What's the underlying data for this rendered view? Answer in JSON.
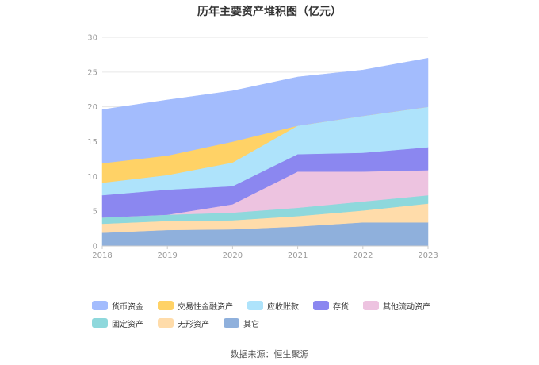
{
  "chart_data": {
    "type": "area",
    "stacked": true,
    "title": "历年主要资产堆积图（亿元）",
    "categories": [
      "2018",
      "2019",
      "2020",
      "2021",
      "2022",
      "2023"
    ],
    "yticks": [
      "0",
      "5",
      "10",
      "15",
      "20",
      "25",
      "30"
    ],
    "ylim": [
      0,
      30
    ],
    "legend_position": "bottom",
    "series": [
      {
        "name": "其它",
        "color": "#8fb0dc",
        "values": [
          1.9,
          2.3,
          2.4,
          2.8,
          3.4,
          3.4
        ]
      },
      {
        "name": "无形资产",
        "color": "#ffdcaa",
        "values": [
          1.3,
          1.3,
          1.3,
          1.5,
          1.7,
          2.7
        ]
      },
      {
        "name": "固定资产",
        "color": "#8ed8dc",
        "values": [
          0.9,
          0.9,
          1.1,
          1.2,
          1.3,
          1.2
        ]
      },
      {
        "name": "其他流动资产",
        "color": "#edc3e0",
        "values": [
          0.0,
          0.0,
          1.2,
          5.2,
          4.3,
          3.6
        ]
      },
      {
        "name": "存货",
        "color": "#8b87f0",
        "values": [
          3.2,
          3.6,
          2.6,
          2.5,
          2.7,
          3.3
        ]
      },
      {
        "name": "应收账款",
        "color": "#aee3fb",
        "values": [
          1.8,
          2.1,
          3.4,
          4.1,
          5.3,
          5.8
        ]
      },
      {
        "name": "交易性金融资产",
        "color": "#ffd266",
        "values": [
          2.8,
          2.8,
          3.0,
          0.0,
          0.0,
          0.0
        ]
      },
      {
        "name": "货币资金",
        "color": "#a3bcfd",
        "values": [
          7.7,
          8.0,
          7.3,
          7.0,
          6.6,
          7.0
        ]
      }
    ]
  },
  "legend_order": [
    "货币资金",
    "交易性金融资产",
    "应收账款",
    "存货",
    "其他流动资产",
    "固定资产",
    "无形资产",
    "其它"
  ],
  "source": "数据来源：恒生聚源"
}
